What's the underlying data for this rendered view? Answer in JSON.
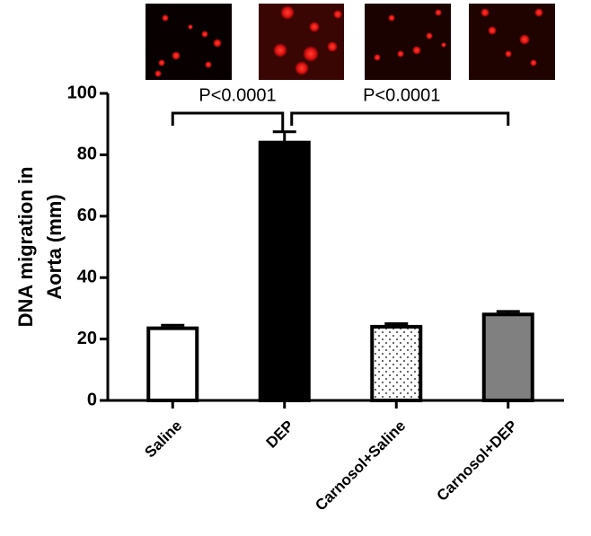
{
  "chart_data": {
    "type": "bar",
    "ylabel": [
      "DNA migration in",
      "Aorta (mm)"
    ],
    "categories": [
      "Saline",
      "DEP",
      "Carnosol+Saline",
      "Carnosol+DEP"
    ],
    "values": [
      23.5,
      84,
      24,
      28
    ],
    "errors": [
      1,
      3.5,
      1,
      1
    ],
    "colors": [
      "#ffffff",
      "#000000",
      "#ffffff",
      "#808080"
    ],
    "patterns": [
      null,
      null,
      "dots",
      null
    ],
    "ylim": [
      0,
      100
    ],
    "yticks": [
      0,
      20,
      40,
      60,
      80,
      100
    ],
    "annotations": [
      "P<0.0001",
      "P<0.0001"
    ]
  }
}
